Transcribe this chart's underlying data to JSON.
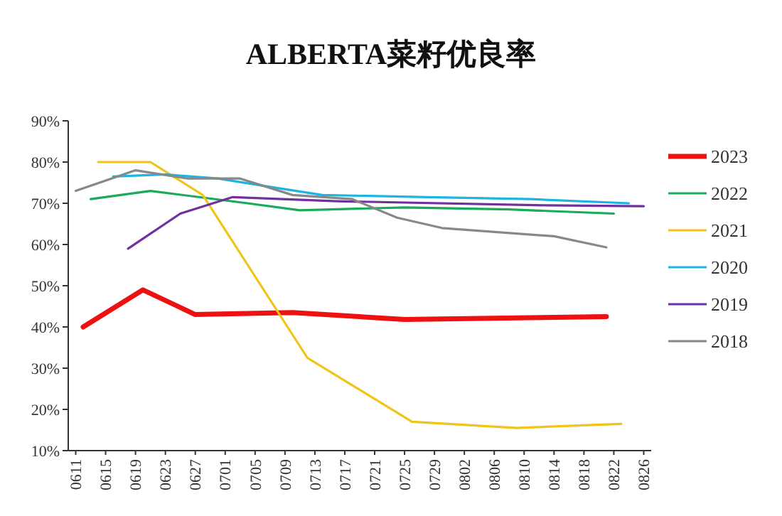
{
  "chart_data": {
    "type": "line",
    "title": "ALBERTA菜籽优良率",
    "xlim": [
      "--06-10",
      "--08-27"
    ],
    "xticks": [
      {
        "value": "--06-11",
        "label": "0611"
      },
      {
        "value": "--06-15",
        "label": "0615"
      },
      {
        "value": "--06-19",
        "label": "0619"
      },
      {
        "value": "--06-23",
        "label": "0623"
      },
      {
        "value": "--06-27",
        "label": "0627"
      },
      {
        "value": "--07-01",
        "label": "0701"
      },
      {
        "value": "--07-05",
        "label": "0705"
      },
      {
        "value": "--07-09",
        "label": "0709"
      },
      {
        "value": "--07-13",
        "label": "0713"
      },
      {
        "value": "--07-17",
        "label": "0717"
      },
      {
        "value": "--07-21",
        "label": "0721"
      },
      {
        "value": "--07-25",
        "label": "0725"
      },
      {
        "value": "--07-29",
        "label": "0729"
      },
      {
        "value": "--08-02",
        "label": "0802"
      },
      {
        "value": "--08-06",
        "label": "0806"
      },
      {
        "value": "--08-10",
        "label": "0810"
      },
      {
        "value": "--08-14",
        "label": "0814"
      },
      {
        "value": "--08-18",
        "label": "0818"
      },
      {
        "value": "--08-22",
        "label": "0822"
      },
      {
        "value": "--08-26",
        "label": "0826"
      }
    ],
    "ylim": [
      10,
      90
    ],
    "yticks": [
      {
        "value": 10,
        "label": "10%"
      },
      {
        "value": 20,
        "label": "20%"
      },
      {
        "value": 30,
        "label": "30%"
      },
      {
        "value": 40,
        "label": "40%"
      },
      {
        "value": 50,
        "label": "50%"
      },
      {
        "value": 60,
        "label": "60%"
      },
      {
        "value": 70,
        "label": "70%"
      },
      {
        "value": 80,
        "label": "80%"
      },
      {
        "value": 90,
        "label": "90%"
      }
    ],
    "grid": false,
    "legend": "right",
    "marker": "none",
    "line_style": "solid",
    "series": [
      {
        "name": "2023",
        "color": "#ee1111",
        "x": [
          "--06-12",
          "--06-20",
          "--06-27",
          "--07-10",
          "--07-25",
          "--08-21"
        ],
        "values": [
          40,
          49,
          43,
          43.5,
          41.8,
          42.5
        ]
      },
      {
        "name": "2022",
        "color": "#1aaa5a",
        "x": [
          "--06-13",
          "--06-21",
          "--07-04",
          "--07-11",
          "--07-25",
          "--08-08",
          "--08-22"
        ],
        "values": [
          71,
          73,
          70,
          68.3,
          69,
          68.5,
          67.5
        ]
      },
      {
        "name": "2021",
        "color": "#f0c419",
        "x": [
          "--06-14",
          "--06-21",
          "--06-28",
          "--07-12",
          "--07-26",
          "--08-09",
          "--08-23"
        ],
        "values": [
          80,
          80,
          72,
          32.5,
          17,
          15.5,
          16.5
        ]
      },
      {
        "name": "2020",
        "color": "#1cb4e0",
        "x": [
          "--06-16",
          "--06-23",
          "--06-30",
          "--07-07",
          "--07-14",
          "--07-28",
          "--08-11",
          "--08-24"
        ],
        "values": [
          76.5,
          77,
          76,
          74,
          72,
          71.5,
          71,
          70
        ]
      },
      {
        "name": "2019",
        "color": "#7030a0",
        "x": [
          "--06-18",
          "--06-25",
          "--07-02",
          "--07-16",
          "--08-13",
          "--08-26"
        ],
        "values": [
          59,
          67.5,
          71.5,
          70.5,
          69.5,
          69.3
        ]
      },
      {
        "name": "2018",
        "color": "#888888",
        "x": [
          "--06-11",
          "--06-19",
          "--06-26",
          "--07-03",
          "--07-10",
          "--07-18",
          "--07-24",
          "--07-30",
          "--08-14",
          "--08-21"
        ],
        "values": [
          73,
          78,
          76,
          76,
          72,
          71,
          66.5,
          64,
          62,
          59.3
        ]
      }
    ]
  }
}
